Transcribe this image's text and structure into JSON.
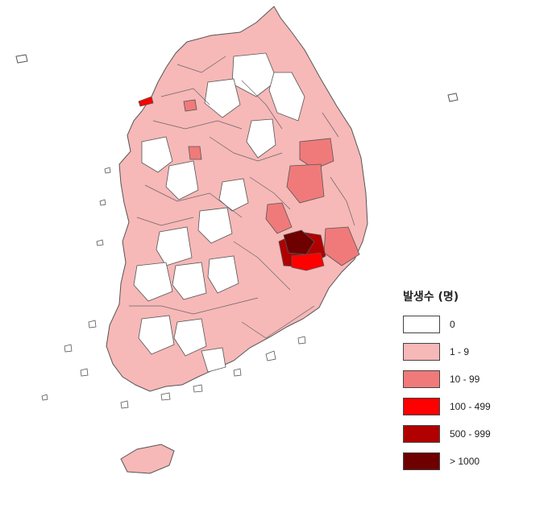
{
  "legend": {
    "title": "발생수 (명)",
    "items": [
      {
        "label": "0",
        "color": "#ffffff"
      },
      {
        "label": "1 - 9",
        "color": "#f7b8b8"
      },
      {
        "label": "10 - 99",
        "color": "#f07a7a"
      },
      {
        "label": "100 - 499",
        "color": "#ff0000"
      },
      {
        "label": "500 - 999",
        "color": "#b00000"
      },
      {
        "label": "> 1000",
        "color": "#6e0000"
      }
    ]
  },
  "colors": {
    "border": "#555555",
    "background": "#ffffff"
  }
}
